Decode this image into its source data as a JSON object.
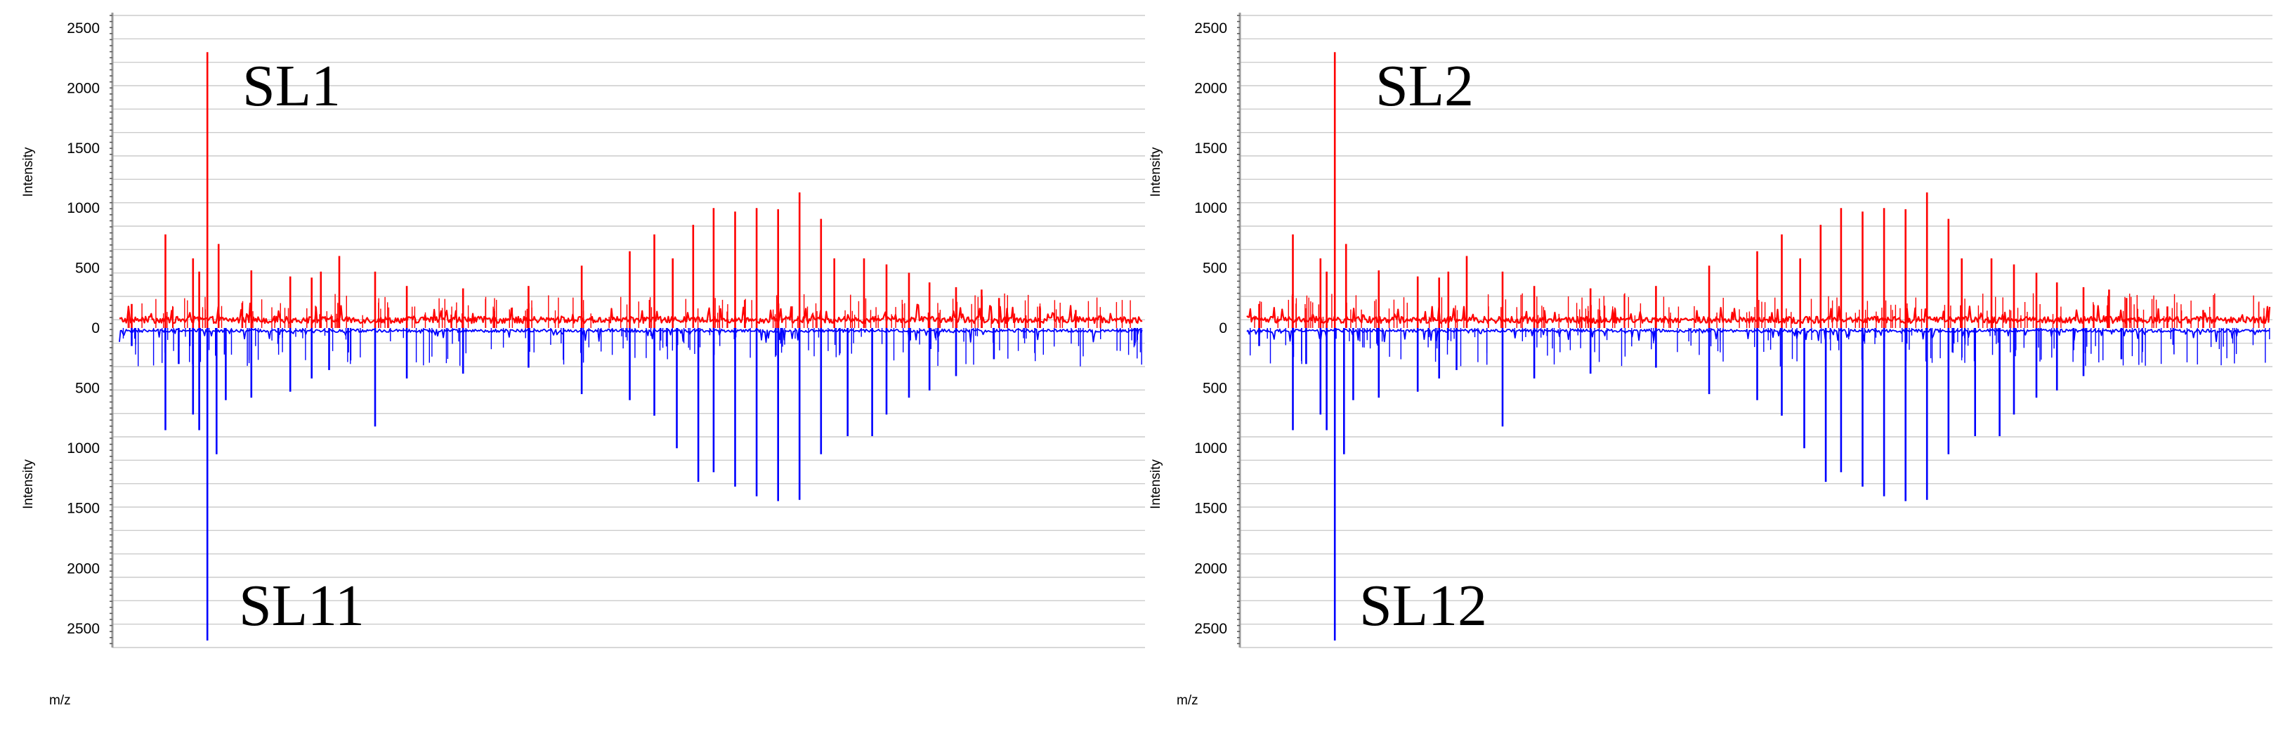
{
  "chart_data": [
    {
      "type": "line",
      "mirror": true,
      "top_label": "SL1",
      "bottom_label": "SL11",
      "ylabel_top": "Intensity",
      "ylabel_bottom": "Intensity",
      "xlabel": "m/z",
      "top_ticks": [
        "2500",
        "2000",
        "1500",
        "1000",
        "500",
        "0"
      ],
      "bottom_ticks": [
        "500",
        "1000",
        "1500",
        "2000",
        "2500"
      ],
      "ylim": [
        -2600,
        2600
      ],
      "grid": true,
      "series": [
        {
          "color": "#ff0000",
          "direction": "up",
          "x": [
            0.012,
            0.045,
            0.072,
            0.078,
            0.086,
            0.097,
            0.129,
            0.167,
            0.188,
            0.197,
            0.215,
            0.25,
            0.281,
            0.336,
            0.4,
            0.452,
            0.499,
            0.523,
            0.541,
            0.561,
            0.581,
            0.602,
            0.623,
            0.644,
            0.665,
            0.686,
            0.699,
            0.728,
            0.75,
            0.772,
            0.792,
            0.818,
            0.843,
            0.86,
            0.9,
            0.935
          ],
          "y": [
            200,
            780,
            580,
            470,
            2300,
            700,
            480,
            430,
            420,
            470,
            600,
            470,
            350,
            330,
            350,
            520,
            640,
            780,
            580,
            860,
            1000,
            970,
            1000,
            990,
            1130,
            910,
            580,
            580,
            530,
            460,
            380,
            340,
            320,
            250,
            180,
            150
          ]
        },
        {
          "color": "#0000ff",
          "direction": "down",
          "x": [
            0.012,
            0.045,
            0.058,
            0.072,
            0.078,
            0.086,
            0.095,
            0.104,
            0.129,
            0.167,
            0.188,
            0.205,
            0.25,
            0.281,
            0.336,
            0.4,
            0.452,
            0.499,
            0.523,
            0.545,
            0.566,
            0.581,
            0.602,
            0.623,
            0.644,
            0.665,
            0.686,
            0.712,
            0.736,
            0.75,
            0.772,
            0.792,
            0.818,
            0.855
          ],
          "y": [
            -150,
            -850,
            -300,
            -720,
            -850,
            -2600,
            -1050,
            -600,
            -580,
            -530,
            -420,
            -350,
            -820,
            -420,
            -380,
            -330,
            -550,
            -600,
            -730,
            -1000,
            -1280,
            -1200,
            -1320,
            -1400,
            -1440,
            -1430,
            -1050,
            -900,
            -900,
            -720,
            -580,
            -520,
            -400,
            -260
          ]
        }
      ]
    },
    {
      "type": "line",
      "mirror": true,
      "top_label": "SL2",
      "bottom_label": "SL12",
      "ylabel_top": "Intensity",
      "ylabel_bottom": "Intensity",
      "xlabel": "m/z",
      "top_ticks": [
        "2500",
        "2000",
        "1500",
        "1000",
        "500",
        "0"
      ],
      "bottom_ticks": [
        "500",
        "1000",
        "1500",
        "2000",
        "2500"
      ],
      "ylim": [
        -2600,
        2600
      ],
      "grid": true,
      "series": [
        {
          "color": "#ff0000",
          "direction": "up",
          "x": [
            0.012,
            0.045,
            0.072,
            0.078,
            0.086,
            0.097,
            0.129,
            0.167,
            0.188,
            0.197,
            0.215,
            0.25,
            0.281,
            0.336,
            0.4,
            0.452,
            0.499,
            0.523,
            0.541,
            0.561,
            0.581,
            0.602,
            0.623,
            0.644,
            0.665,
            0.686,
            0.699,
            0.728,
            0.75,
            0.772,
            0.792,
            0.818,
            0.843,
            0.86,
            0.9,
            0.935
          ],
          "y": [
            200,
            780,
            580,
            470,
            2300,
            700,
            480,
            430,
            420,
            470,
            600,
            470,
            350,
            330,
            350,
            520,
            640,
            780,
            580,
            860,
            1000,
            970,
            1000,
            990,
            1130,
            910,
            580,
            580,
            530,
            460,
            380,
            340,
            320,
            250,
            180,
            150
          ]
        },
        {
          "color": "#0000ff",
          "direction": "down",
          "x": [
            0.012,
            0.045,
            0.058,
            0.072,
            0.078,
            0.086,
            0.095,
            0.104,
            0.129,
            0.167,
            0.188,
            0.205,
            0.25,
            0.281,
            0.336,
            0.4,
            0.452,
            0.499,
            0.523,
            0.545,
            0.566,
            0.581,
            0.602,
            0.623,
            0.644,
            0.665,
            0.686,
            0.712,
            0.736,
            0.75,
            0.772,
            0.792,
            0.818,
            0.855
          ],
          "y": [
            -150,
            -850,
            -300,
            -720,
            -850,
            -2600,
            -1050,
            -600,
            -580,
            -530,
            -420,
            -350,
            -820,
            -420,
            -380,
            -330,
            -550,
            -600,
            -730,
            -1000,
            -1280,
            -1200,
            -1320,
            -1400,
            -1440,
            -1430,
            -1050,
            -900,
            -900,
            -720,
            -580,
            -520,
            -400,
            -260
          ]
        }
      ]
    }
  ]
}
